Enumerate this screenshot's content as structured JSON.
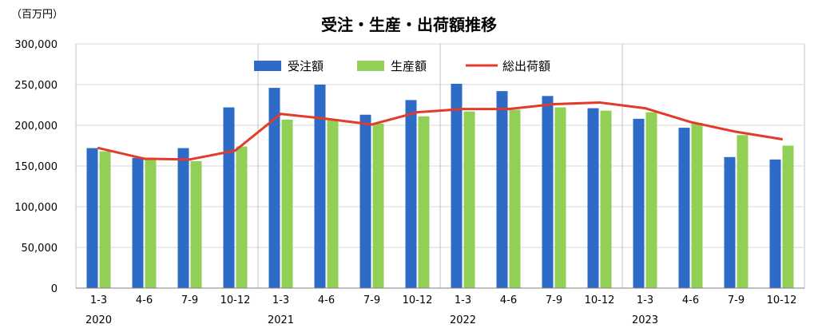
{
  "chart_data": {
    "type": "bar",
    "title": "受注・生産・出荷額推移",
    "unit_label": "（百万円）",
    "ylim": [
      0,
      300000
    ],
    "yticks": [
      "0",
      "50,000",
      "100,000",
      "150,000",
      "200,000",
      "250,000",
      "300,000"
    ],
    "ytick_values": [
      0,
      50000,
      100000,
      150000,
      200000,
      250000,
      300000
    ],
    "categories": [
      "1-3",
      "4-6",
      "7-9",
      "10-12",
      "1-3",
      "4-6",
      "7-9",
      "10-12",
      "1-3",
      "4-6",
      "7-9",
      "10-12",
      "1-3",
      "4-6",
      "7-9",
      "10-12"
    ],
    "years": [
      {
        "label": "2020",
        "start": 0
      },
      {
        "label": "2021",
        "start": 4
      },
      {
        "label": "2022",
        "start": 8
      },
      {
        "label": "2023",
        "start": 12
      }
    ],
    "grid": true,
    "legend_position": "top-center",
    "series": [
      {
        "name": "受注額",
        "kind": "bar",
        "color": "#2e6bc6",
        "values": [
          172000,
          160000,
          172000,
          222000,
          246000,
          250000,
          213000,
          231000,
          251000,
          242000,
          236000,
          221000,
          208000,
          197000,
          161000,
          158000
        ]
      },
      {
        "name": "生産額",
        "kind": "bar",
        "color": "#92cf57",
        "values": [
          168000,
          160000,
          156000,
          174000,
          207000,
          207000,
          202000,
          211000,
          217000,
          219000,
          222000,
          218000,
          216000,
          203000,
          188000,
          175000
        ]
      },
      {
        "name": "総出荷額",
        "kind": "line",
        "color": "#e43a2a",
        "values": [
          172000,
          159000,
          158000,
          169000,
          214000,
          208000,
          201000,
          216000,
          220000,
          220000,
          226000,
          228000,
          221000,
          204000,
          192000,
          183000
        ]
      }
    ]
  }
}
